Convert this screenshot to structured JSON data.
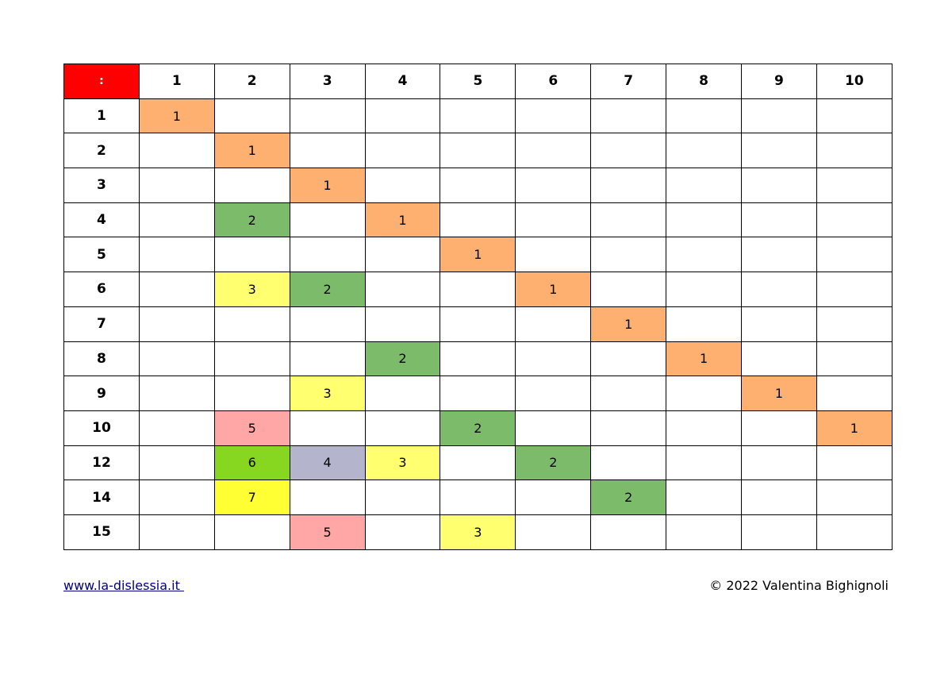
{
  "table": {
    "corner_label": ":",
    "colors": {
      "corner": "#ff0000",
      "orange": "#fdb06f",
      "green": "#7bbb6a",
      "yellow": "#ffff70",
      "pink": "#ffa7a7",
      "lime": "#87d61f",
      "lavender": "#b4b4cc",
      "bright_yellow": "#ffff33"
    },
    "columns": [
      "1",
      "2",
      "3",
      "4",
      "5",
      "6",
      "7",
      "8",
      "9",
      "10"
    ],
    "rows": [
      {
        "label": "1",
        "cells": [
          {
            "v": "1",
            "c": "orange"
          },
          null,
          null,
          null,
          null,
          null,
          null,
          null,
          null,
          null
        ]
      },
      {
        "label": "2",
        "cells": [
          null,
          {
            "v": "1",
            "c": "orange"
          },
          null,
          null,
          null,
          null,
          null,
          null,
          null,
          null
        ]
      },
      {
        "label": "3",
        "cells": [
          null,
          null,
          {
            "v": "1",
            "c": "orange"
          },
          null,
          null,
          null,
          null,
          null,
          null,
          null
        ]
      },
      {
        "label": "4",
        "cells": [
          null,
          {
            "v": "2",
            "c": "green"
          },
          null,
          {
            "v": "1",
            "c": "orange"
          },
          null,
          null,
          null,
          null,
          null,
          null
        ]
      },
      {
        "label": "5",
        "cells": [
          null,
          null,
          null,
          null,
          {
            "v": "1",
            "c": "orange"
          },
          null,
          null,
          null,
          null,
          null
        ]
      },
      {
        "label": "6",
        "cells": [
          null,
          {
            "v": "3",
            "c": "yellow"
          },
          {
            "v": "2",
            "c": "green"
          },
          null,
          null,
          {
            "v": "1",
            "c": "orange"
          },
          null,
          null,
          null,
          null
        ]
      },
      {
        "label": "7",
        "cells": [
          null,
          null,
          null,
          null,
          null,
          null,
          {
            "v": "1",
            "c": "orange"
          },
          null,
          null,
          null
        ]
      },
      {
        "label": "8",
        "cells": [
          null,
          null,
          null,
          {
            "v": "2",
            "c": "green"
          },
          null,
          null,
          null,
          {
            "v": "1",
            "c": "orange"
          },
          null,
          null
        ]
      },
      {
        "label": "9",
        "cells": [
          null,
          null,
          {
            "v": "3",
            "c": "yellow"
          },
          null,
          null,
          null,
          null,
          null,
          {
            "v": "1",
            "c": "orange"
          },
          null
        ]
      },
      {
        "label": "10",
        "cells": [
          null,
          {
            "v": "5",
            "c": "pink"
          },
          null,
          null,
          {
            "v": "2",
            "c": "green"
          },
          null,
          null,
          null,
          null,
          {
            "v": "1",
            "c": "orange"
          }
        ]
      },
      {
        "label": "12",
        "cells": [
          null,
          {
            "v": "6",
            "c": "lime"
          },
          {
            "v": "4",
            "c": "lavender"
          },
          {
            "v": "3",
            "c": "yellow"
          },
          null,
          {
            "v": "2",
            "c": "green"
          },
          null,
          null,
          null,
          null
        ]
      },
      {
        "label": "14",
        "cells": [
          null,
          {
            "v": "7",
            "c": "bright_yellow"
          },
          null,
          null,
          null,
          null,
          {
            "v": "2",
            "c": "green"
          },
          null,
          null,
          null
        ]
      },
      {
        "label": "15",
        "cells": [
          null,
          null,
          {
            "v": "5",
            "c": "pink"
          },
          null,
          {
            "v": "3",
            "c": "yellow"
          },
          null,
          null,
          null,
          null,
          null
        ]
      }
    ]
  },
  "footer": {
    "link_text": "www.la-dislessia.it ",
    "copyright": "© 2022 Valentina Bighignoli"
  }
}
